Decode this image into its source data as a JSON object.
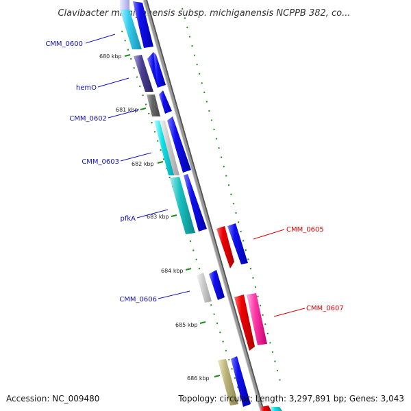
{
  "title": "Clavibacter michiganensis subsp. michiganensis NCPPB 382, co...",
  "footer": {
    "accession": "Accession: NC_009480",
    "topology": "Topology: circular; Length: 3,297,891 bp; Genes: 3,043"
  },
  "colors": {
    "backbone": "#8a8a8a",
    "tick": "#1a8a1a",
    "forward_label": "#1010c0",
    "reverse_label": "#dd0000",
    "forward_arrow": "#0000ee",
    "reverse_arrow": "#ee0000"
  },
  "kbp_labels": [
    "680 kbp",
    "681 kbp",
    "682 kbp",
    "683 kbp",
    "684 kbp",
    "685 kbp",
    "686 kbp"
  ],
  "gene_labels": [
    "CMM_0600",
    "hemO",
    "CMM_0602",
    "CMM_0603",
    "pfkA",
    "CMM_0605",
    "CMM_0606",
    "CMM_0607"
  ]
}
